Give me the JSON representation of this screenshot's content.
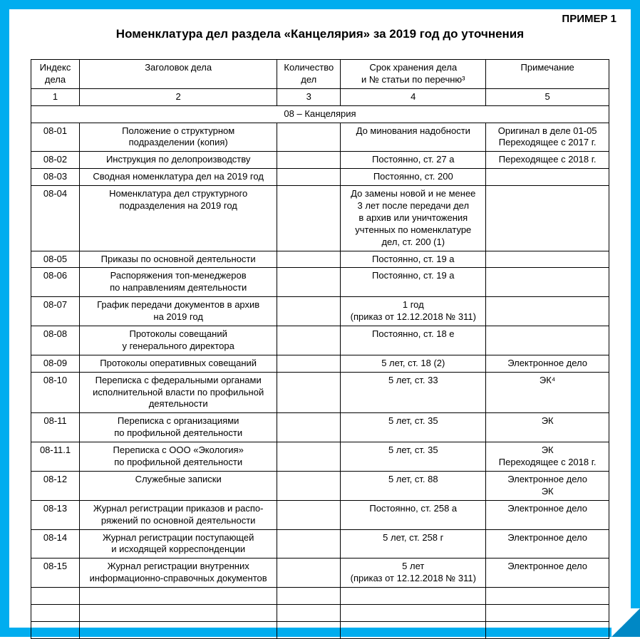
{
  "header": {
    "example_label": "ПРИМЕР 1",
    "title": "Номенклатура дел раздела «Канцелярия» за 2019 год до уточнения"
  },
  "table": {
    "columns": [
      {
        "label": "Индекс\nдела",
        "number": "1"
      },
      {
        "label": "Заголовок дела",
        "number": "2"
      },
      {
        "label": "Количество\nдел",
        "number": "3"
      },
      {
        "label": "Срок хранения дела\nи № статьи по перечню³",
        "number": "4"
      },
      {
        "label": "Примечание",
        "number": "5"
      }
    ],
    "section_label": "08 – Канцелярия",
    "rows": [
      {
        "index": "08-01",
        "title": "Положение о структурном\nподразделении (копия)",
        "count": "",
        "retention": "До минования надобности",
        "note": "Оригинал в деле 01-05\nПереходящее с 2017 г."
      },
      {
        "index": "08-02",
        "title": "Инструкция по делопроизводству",
        "count": "",
        "retention": "Постоянно, ст. 27 а",
        "note": "Переходящее с 2018 г."
      },
      {
        "index": "08-03",
        "title": "Сводная номенклатура дел на 2019 год",
        "count": "",
        "retention": "Постоянно, ст. 200",
        "note": ""
      },
      {
        "index": "08-04",
        "title": "Номенклатура дел структурного\nподразделения на 2019 год",
        "count": "",
        "retention": "До замены новой и не менее\n3 лет после передачи дел\nв архив или уничтожения\nучтенных по номенклатуре\nдел, ст. 200 (1)",
        "note": ""
      },
      {
        "index": "08-05",
        "title": "Приказы по основной деятельности",
        "count": "",
        "retention": "Постоянно, ст. 19 а",
        "note": ""
      },
      {
        "index": "08-06",
        "title": "Распоряжения топ-менеджеров\nпо направлениям деятельности",
        "count": "",
        "retention": "Постоянно, ст. 19 а",
        "note": ""
      },
      {
        "index": "08-07",
        "title": "График передачи документов в архив\nна 2019 год",
        "count": "",
        "retention": "1 год\n(приказ от 12.12.2018 № 311)",
        "note": ""
      },
      {
        "index": "08-08",
        "title": "Протоколы совещаний\nу генерального директора",
        "count": "",
        "retention": "Постоянно, ст. 18 е",
        "note": ""
      },
      {
        "index": "08-09",
        "title": "Протоколы оперативных совещаний",
        "count": "",
        "retention": "5 лет, ст. 18 (2)",
        "note": "Электронное дело"
      },
      {
        "index": "08-10",
        "title": "Переписка с федеральными органами\nисполнительной власти по профильной\nдеятельности",
        "count": "",
        "retention": "5 лет, ст. 33",
        "note": "ЭК⁴"
      },
      {
        "index": "08-11",
        "title": "Переписка с организациями\nпо профильной деятельности",
        "count": "",
        "retention": "5 лет, ст. 35",
        "note": "ЭК"
      },
      {
        "index": "08-11.1",
        "title": "Переписка с ООО «Экология»\nпо профильной деятельности",
        "count": "",
        "retention": "5 лет, ст. 35",
        "note": "ЭК\nПереходящее с 2018 г."
      },
      {
        "index": "08-12",
        "title": "Служебные записки",
        "count": "",
        "retention": "5 лет, ст. 88",
        "note": "Электронное дело\nЭК"
      },
      {
        "index": "08-13",
        "title": "Журнал регистрации приказов и распо-\nряжений по основной деятельности",
        "count": "",
        "retention": "Постоянно, ст. 258 а",
        "note": "Электронное дело"
      },
      {
        "index": "08-14",
        "title": "Журнал регистрации поступающей\nи исходящей корреспонденции",
        "count": "",
        "retention": "5 лет, ст. 258 г",
        "note": "Электронное дело"
      },
      {
        "index": "08-15",
        "title": "Журнал регистрации внутренних\nинформационно-справочных документов",
        "count": "",
        "retention": "5 лет\n(приказ от 12.12.2018 № 311)",
        "note": "Электронное дело"
      }
    ],
    "empty_rows_count": 3
  },
  "colors": {
    "border": "#00adef",
    "fold": "#0088c5",
    "text": "#000000",
    "background": "#ffffff"
  }
}
